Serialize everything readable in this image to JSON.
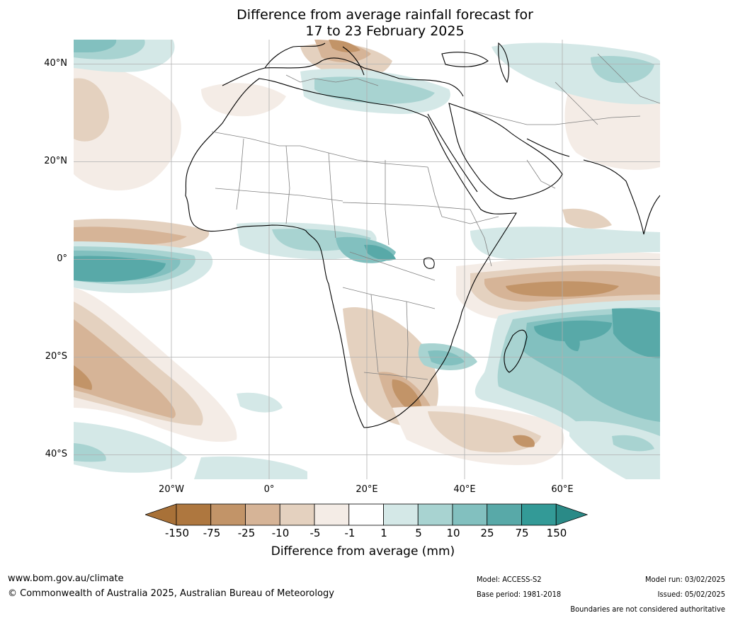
{
  "title": {
    "line1": "Difference from average rainfall forecast for",
    "line2": "17 to 23 February 2025"
  },
  "map": {
    "lat_labels": [
      "40°N",
      "20°N",
      "0°",
      "20°S",
      "40°S"
    ],
    "lon_labels": [
      "20°W",
      "0°",
      "20°E",
      "40°E",
      "60°E"
    ],
    "extent": {
      "lon": [
        -40,
        80
      ],
      "lat": [
        -45,
        45
      ]
    }
  },
  "legend": {
    "ticks": [
      "-150",
      "-75",
      "-25",
      "-10",
      "-5",
      "-1",
      "1",
      "5",
      "10",
      "25",
      "75",
      "150"
    ],
    "colors": [
      "#a87138",
      "#ae773f",
      "#c29468",
      "#d6b497",
      "#e4d1bf",
      "#f4ece6",
      "#ffffff",
      "#d4e8e7",
      "#a8d3d1",
      "#82c0bf",
      "#58a9a8",
      "#339a97",
      "#2a8a87"
    ],
    "title": "Difference from average (mm)"
  },
  "footer": {
    "website": "www.bom.gov.au/climate",
    "copyright": "© Commonwealth of Australia 2025, Australian Bureau of Meteorology",
    "model": "Model: ACCESS-S2",
    "base_period": "Base period: 1981-2018",
    "model_run": "Model run: 03/02/2025",
    "issued": "Issued: 05/02/2025",
    "disclaimer": "Boundaries are not considered authoritative"
  }
}
